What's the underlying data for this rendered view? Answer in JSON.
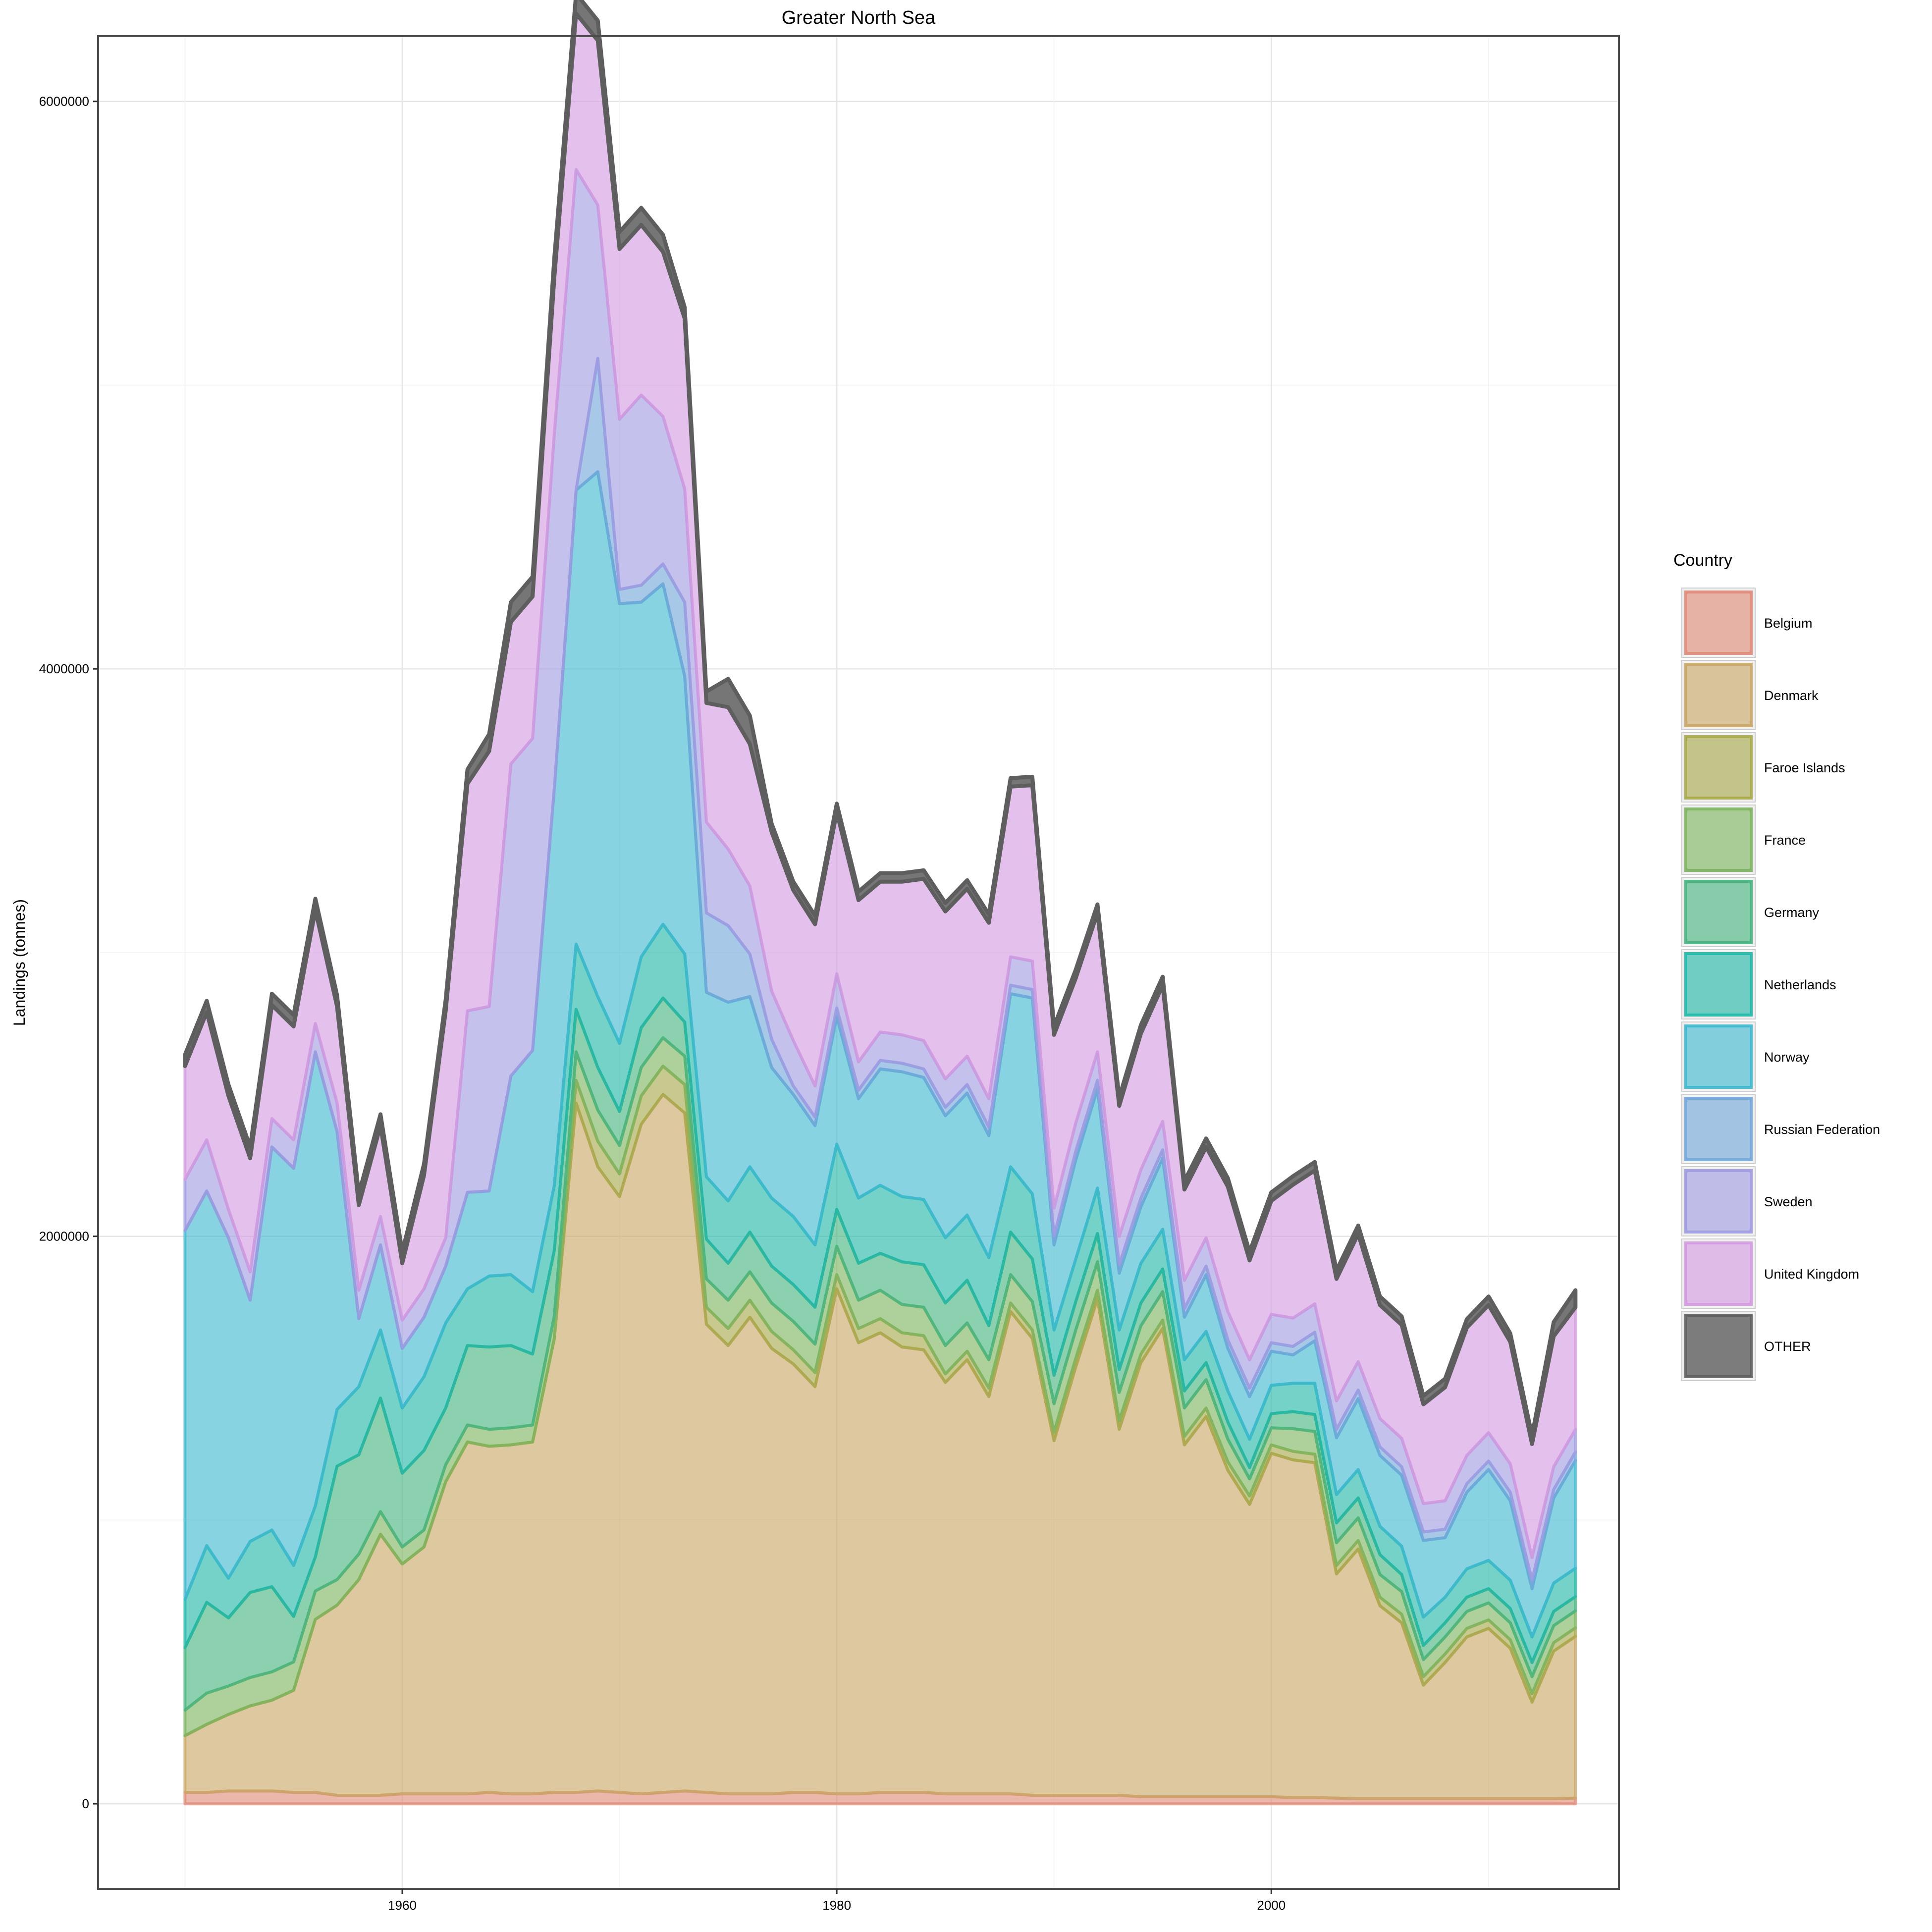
{
  "chart_data": {
    "type": "area",
    "stacked": true,
    "title": "Greater North Sea",
    "xlabel": "",
    "ylabel": "Landings (tonnes)",
    "xlim": [
      1946,
      2016
    ],
    "ylim": [
      -300000,
      6230000
    ],
    "x_ticks": [
      1960,
      1980,
      2000
    ],
    "x_tick_labels": [
      "1960",
      "1980",
      "2000"
    ],
    "y_ticks": [
      0,
      2000000,
      4000000,
      6000000
    ],
    "y_tick_labels": [
      "0",
      "2000000",
      "4000000",
      "6000000"
    ],
    "grid": true,
    "legend_title": "Country",
    "legend_position": "right",
    "x": [
      1950,
      1951,
      1952,
      1953,
      1954,
      1955,
      1956,
      1957,
      1958,
      1959,
      1960,
      1961,
      1962,
      1963,
      1964,
      1965,
      1966,
      1967,
      1968,
      1969,
      1970,
      1971,
      1972,
      1973,
      1974,
      1975,
      1976,
      1977,
      1978,
      1979,
      1980,
      1981,
      1982,
      1983,
      1984,
      1985,
      1986,
      1987,
      1988,
      1989,
      1990,
      1991,
      1992,
      1993,
      1994,
      1995,
      1996,
      1997,
      1998,
      1999,
      2000,
      2001,
      2002,
      2003,
      2004,
      2005,
      2006,
      2007,
      2008,
      2009,
      2010,
      2011,
      2012,
      2013,
      2014
    ],
    "series": [
      {
        "name": "Belgium",
        "color": "#E08A78",
        "values": [
          40000,
          40000,
          45000,
          45000,
          45000,
          40000,
          40000,
          30000,
          30000,
          30000,
          35000,
          35000,
          35000,
          35000,
          40000,
          35000,
          35000,
          40000,
          40000,
          45000,
          40000,
          35000,
          40000,
          45000,
          40000,
          35000,
          35000,
          35000,
          40000,
          40000,
          35000,
          35000,
          40000,
          40000,
          40000,
          35000,
          35000,
          35000,
          35000,
          30000,
          30000,
          30000,
          30000,
          30000,
          25000,
          25000,
          25000,
          25000,
          25000,
          25000,
          25000,
          22000,
          22000,
          20000,
          18000,
          18000,
          18000,
          18000,
          18000,
          18000,
          18000,
          18000,
          18000,
          18000,
          20000
        ]
      },
      {
        "name": "Denmark",
        "color": "#C9A665",
        "values": [
          200000,
          240000,
          270000,
          300000,
          320000,
          360000,
          610000,
          670000,
          760000,
          920000,
          810000,
          870000,
          1100000,
          1240000,
          1220000,
          1230000,
          1240000,
          1600000,
          2430000,
          2200000,
          2100000,
          2360000,
          2460000,
          2390000,
          1650000,
          1580000,
          1680000,
          1570000,
          1510000,
          1430000,
          1780000,
          1590000,
          1620000,
          1570000,
          1560000,
          1450000,
          1530000,
          1400000,
          1700000,
          1610000,
          1250000,
          1510000,
          1750000,
          1290000,
          1530000,
          1650000,
          1240000,
          1340000,
          1150000,
          1030000,
          1210000,
          1190000,
          1180000,
          790000,
          880000,
          680000,
          620000,
          400000,
          480000,
          570000,
          600000,
          530000,
          340000,
          520000,
          570000
        ]
      },
      {
        "name": "Faroe Islands",
        "color": "#A7A849",
        "values": [
          0,
          0,
          0,
          0,
          0,
          0,
          0,
          0,
          0,
          0,
          0,
          0,
          0,
          0,
          0,
          0,
          0,
          0,
          80000,
          90000,
          80000,
          100000,
          100000,
          100000,
          60000,
          60000,
          60000,
          60000,
          50000,
          50000,
          50000,
          50000,
          50000,
          50000,
          50000,
          30000,
          30000,
          30000,
          30000,
          30000,
          30000,
          30000,
          30000,
          30000,
          30000,
          30000,
          30000,
          30000,
          30000,
          30000,
          30000,
          30000,
          30000,
          30000,
          30000,
          30000,
          30000,
          30000,
          30000,
          30000,
          30000,
          30000,
          30000,
          30000,
          30000
        ]
      },
      {
        "name": "France",
        "color": "#7CB45E",
        "values": [
          90000,
          110000,
          100000,
          100000,
          100000,
          100000,
          100000,
          90000,
          90000,
          80000,
          60000,
          60000,
          60000,
          60000,
          60000,
          60000,
          60000,
          80000,
          100000,
          110000,
          100000,
          100000,
          100000,
          100000,
          100000,
          100000,
          100000,
          100000,
          100000,
          100000,
          100000,
          100000,
          100000,
          100000,
          100000,
          100000,
          100000,
          100000,
          100000,
          100000,
          100000,
          100000,
          100000,
          100000,
          100000,
          100000,
          100000,
          100000,
          80000,
          60000,
          60000,
          80000,
          80000,
          80000,
          80000,
          80000,
          80000,
          60000,
          60000,
          60000,
          60000,
          60000,
          60000,
          60000,
          60000
        ]
      },
      {
        "name": "Germany",
        "color": "#45B47E",
        "values": [
          220000,
          320000,
          240000,
          300000,
          300000,
          160000,
          120000,
          400000,
          350000,
          400000,
          260000,
          280000,
          200000,
          280000,
          290000,
          290000,
          250000,
          230000,
          150000,
          150000,
          120000,
          140000,
          140000,
          120000,
          140000,
          130000,
          140000,
          130000,
          130000,
          130000,
          130000,
          130000,
          130000,
          150000,
          150000,
          150000,
          150000,
          120000,
          150000,
          150000,
          100000,
          100000,
          100000,
          80000,
          80000,
          80000,
          60000,
          60000,
          60000,
          40000,
          50000,
          60000,
          60000,
          70000,
          70000,
          70000,
          60000,
          50000,
          50000,
          50000,
          50000,
          50000,
          50000,
          50000,
          50000
        ]
      },
      {
        "name": "Netherlands",
        "color": "#1FB7A6",
        "values": [
          170000,
          200000,
          140000,
          180000,
          200000,
          180000,
          180000,
          200000,
          240000,
          240000,
          230000,
          260000,
          300000,
          200000,
          250000,
          250000,
          220000,
          230000,
          230000,
          250000,
          240000,
          250000,
          260000,
          240000,
          220000,
          220000,
          230000,
          240000,
          240000,
          220000,
          230000,
          230000,
          240000,
          230000,
          230000,
          230000,
          230000,
          240000,
          230000,
          230000,
          160000,
          150000,
          160000,
          140000,
          140000,
          140000,
          110000,
          110000,
          110000,
          100000,
          100000,
          100000,
          110000,
          100000,
          100000,
          100000,
          100000,
          100000,
          90000,
          100000,
          100000,
          100000,
          90000,
          100000,
          100000
        ]
      },
      {
        "name": "Norway",
        "color": "#3DB8CF",
        "values": [
          1300000,
          1250000,
          1200000,
          850000,
          1350000,
          1400000,
          1600000,
          980000,
          240000,
          300000,
          210000,
          210000,
          200000,
          340000,
          300000,
          700000,
          850000,
          1400000,
          1600000,
          1850000,
          1550000,
          1250000,
          1200000,
          980000,
          650000,
          700000,
          600000,
          460000,
          430000,
          420000,
          450000,
          350000,
          410000,
          440000,
          430000,
          430000,
          430000,
          430000,
          610000,
          690000,
          300000,
          350000,
          350000,
          200000,
          200000,
          250000,
          150000,
          200000,
          150000,
          150000,
          120000,
          100000,
          150000,
          200000,
          250000,
          250000,
          250000,
          270000,
          210000,
          270000,
          320000,
          280000,
          170000,
          300000,
          380000
        ]
      },
      {
        "name": "Russian Federation",
        "color": "#72A6DA",
        "values": [
          0,
          0,
          0,
          0,
          0,
          0,
          0,
          0,
          0,
          0,
          0,
          0,
          0,
          0,
          0,
          0,
          0,
          0,
          0,
          400000,
          50000,
          60000,
          70000,
          260000,
          280000,
          270000,
          150000,
          100000,
          30000,
          30000,
          30000,
          30000,
          30000,
          30000,
          30000,
          30000,
          30000,
          30000,
          30000,
          30000,
          30000,
          30000,
          30000,
          30000,
          30000,
          30000,
          30000,
          30000,
          30000,
          30000,
          30000,
          30000,
          30000,
          30000,
          30000,
          30000,
          30000,
          30000,
          30000,
          30000,
          30000,
          30000,
          30000,
          30000,
          30000
        ]
      },
      {
        "name": "Sweden",
        "color": "#A09BE2",
        "values": [
          180000,
          180000,
          100000,
          100000,
          100000,
          100000,
          100000,
          100000,
          100000,
          100000,
          100000,
          100000,
          100000,
          640000,
          650000,
          1100000,
          1100000,
          1250000,
          1130000,
          540000,
          600000,
          670000,
          520000,
          400000,
          320000,
          270000,
          240000,
          170000,
          160000,
          110000,
          120000,
          100000,
          100000,
          100000,
          100000,
          100000,
          100000,
          100000,
          100000,
          100000,
          100000,
          100000,
          100000,
          100000,
          100000,
          100000,
          100000,
          100000,
          100000,
          100000,
          100000,
          100000,
          100000,
          100000,
          100000,
          100000,
          100000,
          100000,
          100000,
          100000,
          100000,
          100000,
          80000,
          80000,
          80000
        ]
      },
      {
        "name": "United Kingdom",
        "color": "#D49AE0",
        "values": [
          400000,
          450000,
          400000,
          400000,
          400000,
          400000,
          400000,
          340000,
          300000,
          320000,
          200000,
          400000,
          800000,
          800000,
          900000,
          500000,
          500000,
          550000,
          550000,
          580000,
          600000,
          600000,
          580000,
          600000,
          420000,
          500000,
          500000,
          560000,
          530000,
          570000,
          570000,
          570000,
          530000,
          540000,
          570000,
          590000,
          590000,
          620000,
          600000,
          620000,
          610000,
          510000,
          490000,
          460000,
          480000,
          480000,
          320000,
          320000,
          440000,
          350000,
          400000,
          470000,
          470000,
          430000,
          450000,
          400000,
          400000,
          350000,
          400000,
          450000,
          450000,
          430000,
          400000,
          460000,
          430000
        ]
      },
      {
        "name": "OTHER",
        "color": "#5E5E5E",
        "values": [
          40000,
          40000,
          40000,
          40000,
          40000,
          40000,
          40000,
          40000,
          40000,
          40000,
          40000,
          40000,
          40000,
          50000,
          60000,
          70000,
          70000,
          70000,
          70000,
          70000,
          60000,
          60000,
          60000,
          40000,
          40000,
          100000,
          100000,
          30000,
          30000,
          30000,
          30000,
          30000,
          30000,
          30000,
          30000,
          30000,
          30000,
          30000,
          30000,
          30000,
          30000,
          30000,
          30000,
          30000,
          30000,
          30000,
          30000,
          30000,
          30000,
          30000,
          30000,
          30000,
          30000,
          30000,
          30000,
          30000,
          30000,
          30000,
          30000,
          30000,
          30000,
          30000,
          30000,
          50000,
          60000
        ]
      }
    ]
  }
}
